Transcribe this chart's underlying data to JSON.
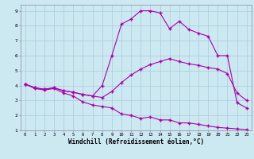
{
  "xlabel": "Windchill (Refroidissement éolien,°C)",
  "bg_color": "#cce8f0",
  "grid_color": "#aaccdd",
  "line_color": "#aa00aa",
  "xlim": [
    -0.5,
    23.5
  ],
  "ylim": [
    1,
    9.4
  ],
  "xticks": [
    0,
    1,
    2,
    3,
    4,
    5,
    6,
    7,
    8,
    9,
    10,
    11,
    12,
    13,
    14,
    15,
    16,
    17,
    18,
    19,
    20,
    21,
    22,
    23
  ],
  "yticks": [
    1,
    2,
    3,
    4,
    5,
    6,
    7,
    8,
    9
  ],
  "line1_x": [
    0,
    1,
    2,
    3,
    4,
    5,
    6,
    7,
    8,
    9,
    10,
    11,
    12,
    13,
    14,
    15,
    16,
    17,
    18,
    19,
    20,
    21,
    22,
    23
  ],
  "line1_y": [
    4.1,
    3.8,
    3.7,
    3.8,
    3.5,
    3.3,
    2.9,
    2.7,
    2.6,
    2.5,
    2.1,
    2.0,
    1.8,
    1.9,
    1.7,
    1.7,
    1.5,
    1.5,
    1.4,
    1.3,
    1.2,
    1.15,
    1.1,
    1.05
  ],
  "line2_x": [
    0,
    1,
    2,
    3,
    4,
    5,
    6,
    7,
    8,
    9,
    10,
    11,
    12,
    13,
    14,
    15,
    16,
    17,
    18,
    19,
    20,
    21,
    22,
    23
  ],
  "line2_y": [
    4.1,
    3.85,
    3.75,
    3.85,
    3.65,
    3.55,
    3.4,
    3.3,
    3.2,
    3.6,
    4.2,
    4.7,
    5.1,
    5.4,
    5.6,
    5.8,
    5.6,
    5.45,
    5.35,
    5.2,
    5.1,
    4.8,
    3.5,
    3.0
  ],
  "line3_x": [
    0,
    1,
    2,
    3,
    4,
    5,
    6,
    7,
    8,
    9,
    10,
    11,
    12,
    13,
    14,
    15,
    16,
    17,
    18,
    19,
    20,
    21,
    22,
    23
  ],
  "line3_y": [
    4.1,
    3.85,
    3.75,
    3.85,
    3.65,
    3.55,
    3.4,
    3.3,
    4.0,
    6.0,
    8.1,
    8.45,
    9.0,
    9.0,
    8.85,
    7.8,
    8.3,
    7.75,
    7.5,
    7.3,
    6.0,
    6.0,
    2.85,
    2.5
  ],
  "marker": "+",
  "markersize": 3,
  "linewidth": 0.8
}
